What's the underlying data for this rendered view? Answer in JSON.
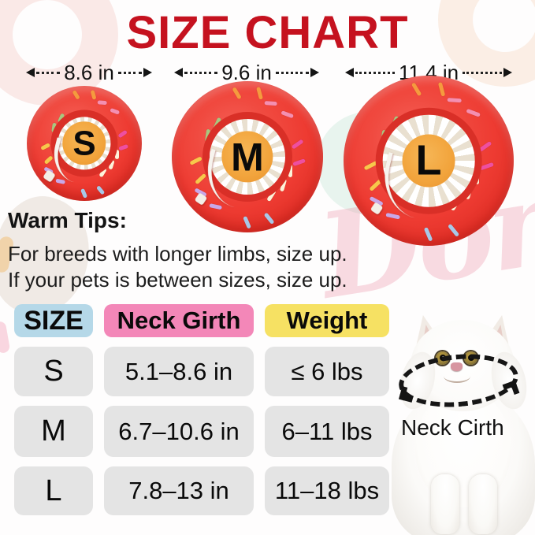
{
  "title": "SIZE CHART",
  "sizes": [
    {
      "label": "S",
      "width_label": "8.6 in"
    },
    {
      "label": "M",
      "width_label": "9.6 in"
    },
    {
      "label": "L",
      "width_label": "11.4 in"
    }
  ],
  "tips": {
    "heading": "Warm Tips:",
    "line1": "For breeds with longer limbs, size up.",
    "line2": "If your pets is between sizes, size up."
  },
  "table": {
    "headers": {
      "size": "SIZE",
      "neck": "Neck Girth",
      "weight": "Weight"
    },
    "rows": [
      {
        "size": "S",
        "neck": "5.1–8.6 in",
        "weight": "≤ 6 lbs"
      },
      {
        "size": "M",
        "neck": "6.7–10.6 in",
        "weight": "6–11 lbs"
      },
      {
        "size": "L",
        "neck": "7.8–13 in",
        "weight": "11–18 lbs"
      }
    ]
  },
  "cat": {
    "annotation": "Neck Cirth"
  },
  "watermark": "Donuts",
  "colors": {
    "title_red": "#c5121f",
    "donut_red": "#ee3b32",
    "donut_center_orange": "#f2a43c",
    "header_size_blue": "#b5d8e8",
    "header_neck_pink": "#f387b8",
    "header_weight_yellow": "#f6e163",
    "cell_gray": "#e4e4e4"
  },
  "donut": {
    "sprinkle_colors": [
      "#fdf3da",
      "#f7c84b",
      "#f48fb1",
      "#a8c8e8",
      "#a9c77f",
      "#ee4fa0",
      "#c9a8e8",
      "#f59a3e"
    ]
  },
  "chart_data": {
    "type": "table",
    "title": "SIZE CHART",
    "columns": [
      "SIZE",
      "Neck Girth",
      "Weight"
    ],
    "rows": [
      [
        "S",
        "5.1–8.6 in",
        "≤ 6 lbs"
      ],
      [
        "M",
        "6.7–10.6 in",
        "6–11 lbs"
      ],
      [
        "L",
        "7.8–13 in",
        "11–18 lbs"
      ]
    ],
    "collar_outer_widths": [
      {
        "size": "S",
        "width_in": 8.6
      },
      {
        "size": "M",
        "width_in": 9.6
      },
      {
        "size": "L",
        "width_in": 11.4
      }
    ],
    "notes": [
      "For breeds with longer limbs, size up.",
      "If your pets is between sizes, size up."
    ]
  }
}
